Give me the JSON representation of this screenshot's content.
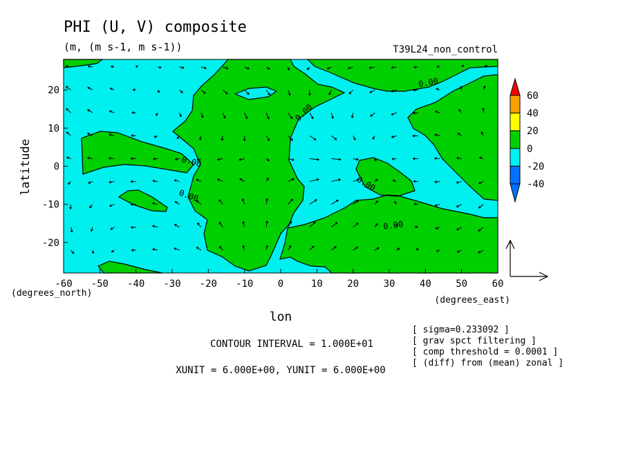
{
  "title": "PHI (U, V) composite",
  "units": "(m, (m s-1, m s-1))",
  "run": "T39L24_non_control",
  "colors": {
    "land": "#00d000",
    "ocean": "#00f0f0",
    "cbar": [
      "#0070ff",
      "#00f0f0",
      "#00d000",
      "#ffff00",
      "#ffa000",
      "#ff0000"
    ]
  },
  "chart_data": {
    "type": "contour-vector",
    "xlabel": "lon",
    "xunit": "(degrees_east)",
    "ylabel": "latitude",
    "yunit": "(degrees_north)",
    "xlim": [
      -60,
      60
    ],
    "ylim": [
      -28,
      28
    ],
    "xticks": [
      -60,
      -50,
      -40,
      -30,
      -20,
      -10,
      0,
      10,
      20,
      30,
      40,
      50,
      60
    ],
    "yticks": [
      20,
      10,
      0,
      -10,
      -20
    ],
    "contour_label": "0.00",
    "colorbar": {
      "levels": [
        60,
        40,
        20,
        0,
        -20,
        -40
      ],
      "fill_levels": [
        "<-40",
        "-40..-20",
        "-20..0",
        "0..20",
        "20..40",
        "40..60",
        ">60"
      ]
    }
  },
  "notes": {
    "contour_interval": "CONTOUR INTERVAL = 1.000E+01",
    "vector_unit": "XUNIT = 6.000E+00, YUNIT = 6.000E+00",
    "info": [
      "[ sigma=0.233092 ]",
      "[ grav spct filtering ]",
      "[ comp threshold = 0.0001 ]",
      "[ (diff) from (mean) zonal ]"
    ]
  }
}
